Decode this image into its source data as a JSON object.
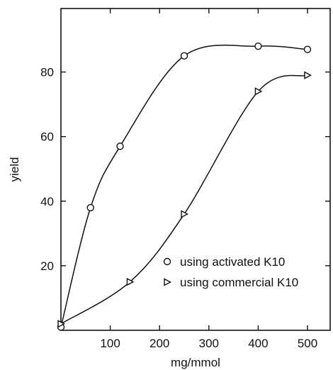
{
  "chart_data": {
    "type": "line",
    "title": "",
    "xlabel": "mg/mmol",
    "ylabel": "yield",
    "xlim": [
      0,
      520
    ],
    "ylim": [
      0,
      100
    ],
    "x_ticks": [
      100,
      200,
      300,
      400,
      500
    ],
    "y_ticks": [
      20,
      40,
      60,
      80
    ],
    "grid": false,
    "legend_position": "lower-right",
    "series": [
      {
        "name": "using activated K10",
        "marker": "circle",
        "points": [
          [
            0,
            1
          ],
          [
            60,
            38
          ],
          [
            120,
            57
          ],
          [
            250,
            85
          ],
          [
            400,
            88
          ],
          [
            500,
            87
          ]
        ]
      },
      {
        "name": "using commercial K10",
        "marker": "triangle-right",
        "points": [
          [
            0,
            2
          ],
          [
            140,
            15
          ],
          [
            250,
            36
          ],
          [
            400,
            74
          ],
          [
            500,
            79
          ]
        ]
      }
    ]
  }
}
